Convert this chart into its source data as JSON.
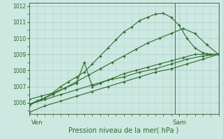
{
  "background_color": "#cce8e0",
  "grid_color": "#aacccc",
  "line_color": "#2d6b2d",
  "marker_color": "#2d6b2d",
  "xlabel": "Pression niveau de la mer( hPa )",
  "yticks": [
    1006,
    1007,
    1008,
    1009,
    1010,
    1011,
    1012
  ],
  "ylim": [
    1005.3,
    1012.2
  ],
  "xlim": [
    0,
    48
  ],
  "xtick_positions": [
    2,
    38
  ],
  "xtick_labels": [
    "Ven",
    "Sam"
  ],
  "vline_x": 37,
  "series": [
    {
      "x": [
        0,
        2,
        4,
        6,
        8,
        10,
        12,
        14,
        16,
        18,
        20,
        22,
        24,
        26,
        28,
        30,
        32,
        34,
        36,
        38,
        40,
        42,
        44,
        46,
        48
      ],
      "y": [
        1005.8,
        1006.1,
        1006.3,
        1006.6,
        1007.0,
        1007.3,
        1007.6,
        1007.9,
        1008.4,
        1008.9,
        1009.4,
        1009.9,
        1010.4,
        1010.7,
        1011.1,
        1011.3,
        1011.5,
        1011.55,
        1011.3,
        1010.8,
        1010.0,
        1009.4,
        1009.1,
        1009.0,
        1009.0
      ]
    },
    {
      "x": [
        0,
        3,
        6,
        9,
        12,
        15,
        18,
        21,
        24,
        27,
        30,
        33,
        36,
        39,
        42,
        45,
        48
      ],
      "y": [
        1005.9,
        1006.2,
        1006.5,
        1006.9,
        1007.3,
        1007.7,
        1008.1,
        1008.5,
        1008.9,
        1009.3,
        1009.7,
        1010.0,
        1010.3,
        1010.6,
        1010.3,
        1009.6,
        1009.0
      ]
    },
    {
      "x": [
        0,
        3,
        6,
        9,
        12,
        14,
        16,
        18,
        21,
        24,
        27,
        30,
        33,
        36,
        39,
        42,
        45,
        48
      ],
      "y": [
        1006.2,
        1006.4,
        1006.6,
        1006.9,
        1007.2,
        1008.5,
        1007.0,
        1007.2,
        1007.5,
        1007.8,
        1008.0,
        1008.2,
        1008.4,
        1008.6,
        1008.8,
        1009.0,
        1009.0,
        1009.0
      ]
    },
    {
      "x": [
        0,
        4,
        8,
        12,
        16,
        20,
        24,
        28,
        32,
        36,
        40,
        44,
        48
      ],
      "y": [
        1005.9,
        1006.2,
        1006.5,
        1006.8,
        1007.1,
        1007.4,
        1007.6,
        1007.9,
        1008.1,
        1008.4,
        1008.7,
        1008.9,
        1009.0
      ]
    },
    {
      "x": [
        0,
        4,
        8,
        12,
        16,
        20,
        24,
        28,
        32,
        36,
        40,
        44,
        48
      ],
      "y": [
        1005.4,
        1005.8,
        1006.1,
        1006.4,
        1006.7,
        1007.0,
        1007.3,
        1007.6,
        1007.9,
        1008.1,
        1008.4,
        1008.7,
        1009.0
      ]
    }
  ]
}
